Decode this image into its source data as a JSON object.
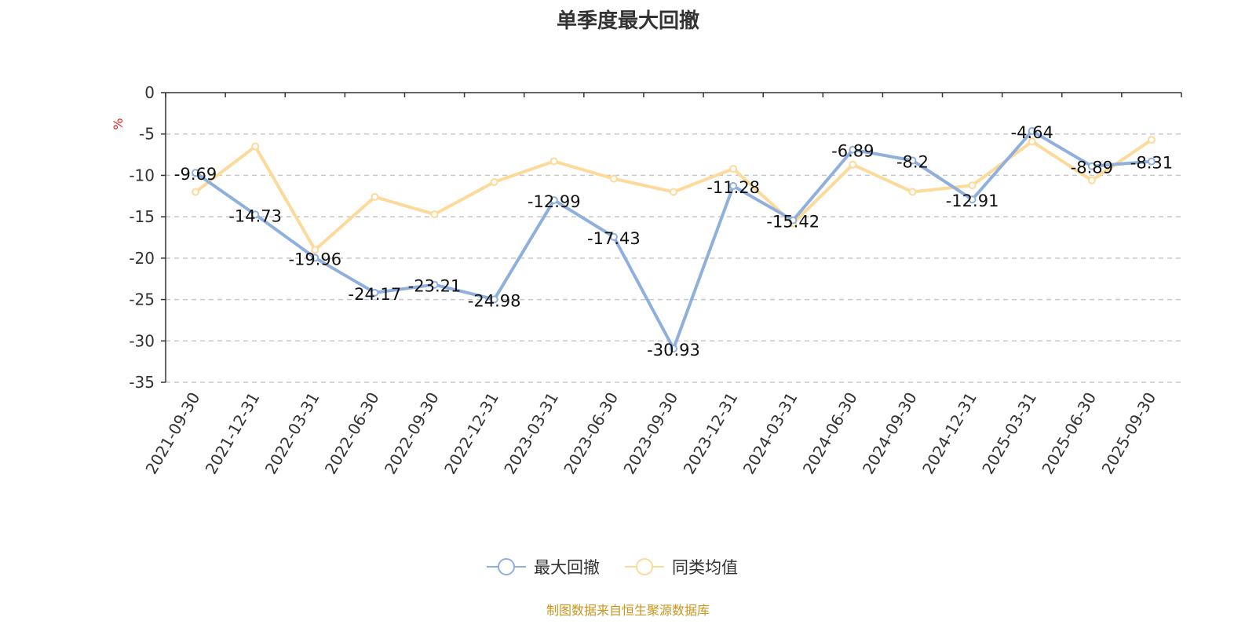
{
  "chart_data": {
    "type": "line",
    "title": "单季度最大回撤",
    "ylabel": "%",
    "xlabel": "",
    "ylim": [
      -35,
      0
    ],
    "yticks": [
      0,
      -5,
      -10,
      -15,
      -20,
      -25,
      -30,
      -35
    ],
    "grid": true,
    "legend_position": "bottom",
    "categories": [
      "2021-09-30",
      "2021-12-31",
      "2022-03-31",
      "2022-06-30",
      "2022-09-30",
      "2022-12-31",
      "2023-03-31",
      "2023-06-30",
      "2023-09-30",
      "2023-12-31",
      "2024-03-31",
      "2024-06-30",
      "2024-09-30",
      "2024-12-31",
      "2025-03-31",
      "2025-06-30",
      "2025-09-30"
    ],
    "series": [
      {
        "name": "最大回撤",
        "color": "#8fb0dc",
        "show_labels": true,
        "values": [
          -9.69,
          -14.73,
          -19.96,
          -24.17,
          -23.21,
          -24.98,
          -12.99,
          -17.43,
          -30.93,
          -11.28,
          -15.42,
          -6.89,
          -8.2,
          -12.91,
          -4.64,
          -8.89,
          -8.31
        ]
      },
      {
        "name": "同类均值",
        "color": "#fdd99a",
        "show_labels": false,
        "values": [
          -12.0,
          -6.5,
          -19.0,
          -12.6,
          -14.7,
          -10.8,
          -8.3,
          -10.4,
          -12.0,
          -9.2,
          -15.8,
          -8.7,
          -12.0,
          -11.2,
          -5.9,
          -10.6,
          -5.7
        ]
      }
    ]
  },
  "source": "制图数据来自恒生聚源数据库"
}
